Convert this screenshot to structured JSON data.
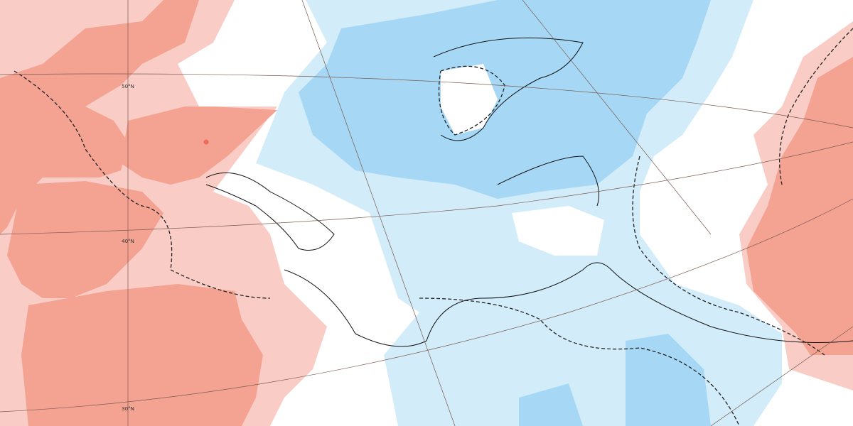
{
  "map": {
    "graticule_labels": [
      "50°N",
      "40°N",
      "30°N"
    ]
  }
}
